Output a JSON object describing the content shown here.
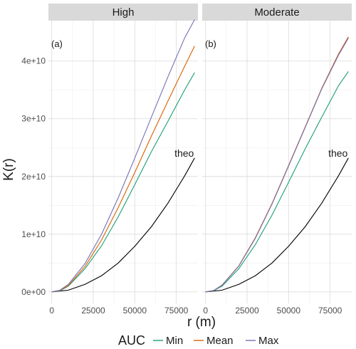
{
  "chart_data": {
    "type": "line",
    "xlabel": "r (m)",
    "ylabel": "K(r)",
    "xlim": [
      -2000,
      88000
    ],
    "ylim": [
      -2000000000,
      47000000000
    ],
    "x_ticks": [
      0,
      25000,
      50000,
      75000
    ],
    "x_tick_labels": [
      "0",
      "25000",
      "50000",
      "75000"
    ],
    "y_ticks": [
      0,
      10000000000,
      20000000000,
      30000000000,
      40000000000
    ],
    "y_tick_labels": [
      "0e+00",
      "1e+10",
      "2e+10",
      "3e+10",
      "4e+10"
    ],
    "grid": true,
    "legend": {
      "title": "AUC",
      "placement": "bottom",
      "entries": [
        {
          "label": "Min",
          "color": "#1b9e77"
        },
        {
          "label": "Mean",
          "color": "#d95f02"
        },
        {
          "label": "Max",
          "color": "#7570b3"
        }
      ]
    },
    "panels": [
      {
        "strip": "High",
        "tag": "(a)",
        "theo_label": "theo",
        "series": [
          {
            "name": "Min",
            "color": "#1b9e77",
            "x": [
              0,
              5000,
              10000,
              20000,
              30000,
              40000,
              50000,
              60000,
              70000,
              80000,
              86000
            ],
            "y": [
              0,
              200000000,
              1000000000,
              4000000000,
              8000000000,
              13000000000,
              18600000000,
              24300000000,
              29600000000,
              35000000000,
              38000000000
            ]
          },
          {
            "name": "Mean",
            "color": "#d95f02",
            "x": [
              0,
              5000,
              10000,
              20000,
              30000,
              40000,
              50000,
              60000,
              70000,
              80000,
              86000
            ],
            "y": [
              0,
              250000000,
              1100000000,
              4400000000,
              9000000000,
              14600000000,
              20700000000,
              27000000000,
              33100000000,
              39100000000,
              42600000000
            ]
          },
          {
            "name": "Max",
            "color": "#7570b3",
            "x": [
              0,
              5000,
              10000,
              20000,
              30000,
              40000,
              50000,
              60000,
              70000,
              80000,
              86000
            ],
            "y": [
              0,
              300000000,
              1300000000,
              4900000000,
              10000000000,
              16300000000,
              23200000000,
              30300000000,
              37300000000,
              44000000000,
              47200000000
            ]
          },
          {
            "name": "theo",
            "color": "#000000",
            "x": [
              0,
              10000,
              20000,
              30000,
              40000,
              50000,
              60000,
              70000,
              80000,
              86000
            ],
            "y": [
              0,
              300000000,
              1300000000,
              2800000000,
              5000000000,
              7900000000,
              11300000000,
              15400000000,
              20100000000,
              23200000000
            ]
          }
        ]
      },
      {
        "strip": "Moderate",
        "tag": "(b)",
        "theo_label": "theo",
        "series": [
          {
            "name": "Min",
            "color": "#1b9e77",
            "x": [
              0,
              5000,
              10000,
              20000,
              30000,
              40000,
              50000,
              60000,
              70000,
              80000,
              86000
            ],
            "y": [
              0,
              220000000,
              1000000000,
              4000000000,
              8200000000,
              13300000000,
              19000000000,
              24800000000,
              30300000000,
              35700000000,
              38200000000
            ]
          },
          {
            "name": "Mean",
            "color": "#d95f02",
            "x": [
              0,
              5000,
              10000,
              20000,
              30000,
              40000,
              50000,
              60000,
              70000,
              80000,
              86000
            ],
            "y": [
              0,
              250000000,
              1200000000,
              4500000000,
              9400000000,
              15300000000,
              21900000000,
              28600000000,
              35300000000,
              41200000000,
              44200000000
            ]
          },
          {
            "name": "Max",
            "color": "#7570b3",
            "x": [
              0,
              5000,
              10000,
              20000,
              30000,
              40000,
              50000,
              60000,
              70000,
              80000,
              86000
            ],
            "y": [
              0,
              240000000,
              1150000000,
              4450000000,
              9300000000,
              15200000000,
              21800000000,
              28500000000,
              35200000000,
              41000000000,
              44000000000
            ]
          },
          {
            "name": "theo",
            "color": "#000000",
            "x": [
              0,
              10000,
              20000,
              30000,
              40000,
              50000,
              60000,
              70000,
              80000,
              86000
            ],
            "y": [
              0,
              300000000,
              1300000000,
              2800000000,
              5000000000,
              7900000000,
              11300000000,
              15400000000,
              20100000000,
              23200000000
            ]
          }
        ]
      }
    ]
  }
}
